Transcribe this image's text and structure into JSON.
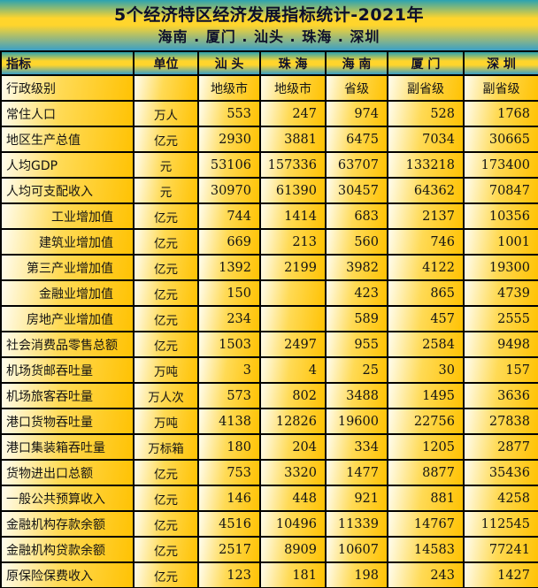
{
  "title": {
    "line1": "5个经济特区经济发展指标统计-2021年",
    "line2": "海南 . 厦门 . 汕头 . 珠海 . 深圳"
  },
  "table": {
    "headers": [
      "指标",
      "单位",
      "汕 头",
      "珠 海",
      "海 南",
      "厦 门",
      "深 圳"
    ],
    "rows": [
      {
        "indicator": "行政级别",
        "unit": "",
        "values": [
          "地级市",
          "地级市",
          "省级",
          "副省级",
          "副省级"
        ],
        "indent": false,
        "center": true
      },
      {
        "indicator": "常住人口",
        "unit": "万人",
        "values": [
          "553",
          "247",
          "974",
          "528",
          "1768"
        ],
        "indent": false,
        "center": false
      },
      {
        "indicator": "地区生产总值",
        "unit": "亿元",
        "values": [
          "2930",
          "3881",
          "6475",
          "7034",
          "30665"
        ],
        "indent": false,
        "center": false
      },
      {
        "indicator": "人均GDP",
        "unit": "元",
        "values": [
          "53106",
          "157336",
          "63707",
          "133218",
          "173400"
        ],
        "indent": false,
        "center": false
      },
      {
        "indicator": "人均可支配收入",
        "unit": "元",
        "values": [
          "30970",
          "61390",
          "30457",
          "64362",
          "70847"
        ],
        "indent": false,
        "center": false
      },
      {
        "indicator": "工业增加值",
        "unit": "亿元",
        "values": [
          "744",
          "1414",
          "683",
          "2137",
          "10356"
        ],
        "indent": true,
        "center": false
      },
      {
        "indicator": "建筑业增加值",
        "unit": "亿元",
        "values": [
          "669",
          "213",
          "560",
          "746",
          "1001"
        ],
        "indent": true,
        "center": false
      },
      {
        "indicator": "第三产业增加值",
        "unit": "亿元",
        "values": [
          "1392",
          "2199",
          "3982",
          "4122",
          "19300"
        ],
        "indent": true,
        "center": false
      },
      {
        "indicator": "金融业增加值",
        "unit": "亿元",
        "values": [
          "150",
          "",
          "423",
          "865",
          "4739"
        ],
        "indent": true,
        "center": false
      },
      {
        "indicator": "房地产业增加值",
        "unit": "亿元",
        "values": [
          "234",
          "",
          "589",
          "457",
          "2555"
        ],
        "indent": true,
        "center": false
      },
      {
        "indicator": "社会消费品零售总额",
        "unit": "亿元",
        "values": [
          "1503",
          "2497",
          "955",
          "2584",
          "9498"
        ],
        "indent": false,
        "center": false
      },
      {
        "indicator": "机场货邮吞吐量",
        "unit": "万吨",
        "values": [
          "3",
          "4",
          "25",
          "30",
          "157"
        ],
        "indent": false,
        "center": false
      },
      {
        "indicator": "机场旅客吞吐量",
        "unit": "万人次",
        "values": [
          "573",
          "802",
          "3488",
          "1495",
          "3636"
        ],
        "indent": false,
        "center": false
      },
      {
        "indicator": "港口货物吞吐量",
        "unit": "万吨",
        "values": [
          "4138",
          "12826",
          "19600",
          "22756",
          "27838"
        ],
        "indent": false,
        "center": false
      },
      {
        "indicator": "港口集装箱吞吐量",
        "unit": "万标箱",
        "values": [
          "180",
          "204",
          "334",
          "1205",
          "2877"
        ],
        "indent": false,
        "center": false
      },
      {
        "indicator": "货物进出口总额",
        "unit": "亿元",
        "values": [
          "753",
          "3320",
          "1477",
          "8877",
          "35436"
        ],
        "indent": false,
        "center": false
      },
      {
        "indicator": "一般公共预算收入",
        "unit": "亿元",
        "values": [
          "146",
          "448",
          "921",
          "881",
          "4258"
        ],
        "indent": false,
        "center": false
      },
      {
        "indicator": "金融机构存款余额",
        "unit": "亿元",
        "values": [
          "4516",
          "10496",
          "11339",
          "14767",
          "112545"
        ],
        "indent": false,
        "center": false
      },
      {
        "indicator": "金融机构贷款余额",
        "unit": "亿元",
        "values": [
          "2517",
          "8909",
          "10607",
          "14583",
          "77241"
        ],
        "indent": false,
        "center": false
      },
      {
        "indicator": "原保险保费收入",
        "unit": "亿元",
        "values": [
          "123",
          "181",
          "198",
          "243",
          "1427"
        ],
        "indent": false,
        "center": false
      }
    ]
  },
  "colors": {
    "teal-top": "#2ba3b1",
    "teal-bottom": "#3a9fc6",
    "band-yellow": "#ffd52c",
    "cell-light": "#fffdf0",
    "cell-mid": "#ffda55",
    "cell-gold": "#ffc203",
    "grid": "#000000",
    "body-text": "#141414",
    "header-text": "#0d102c"
  }
}
